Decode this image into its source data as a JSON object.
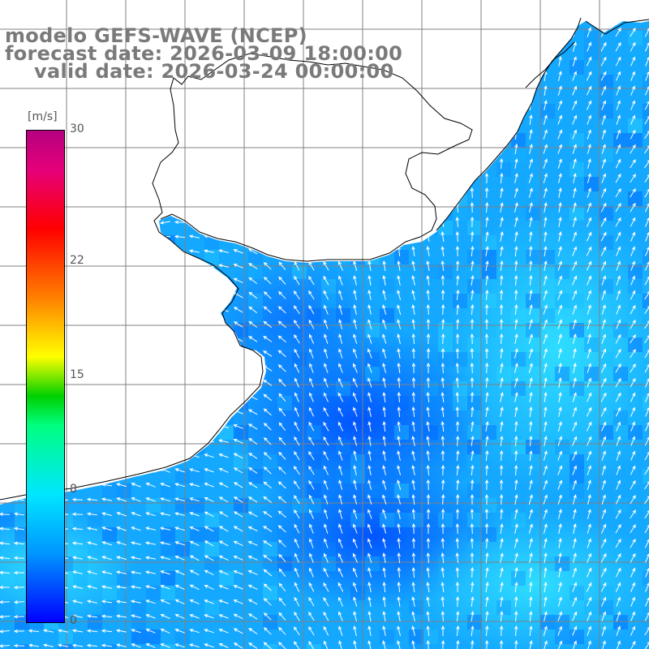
{
  "title": {
    "model": "modelo GEFS-WAVE (NCEP)",
    "forecast": "forecast date: 2026-03-09 18:00:00",
    "valid": "valid date: 2026-03-24 00:00:00"
  },
  "colorbar": {
    "units": "[m/s]",
    "ticks": [
      "30",
      "22",
      "15",
      "8",
      "0"
    ],
    "tick_values": [
      30,
      22,
      15,
      8,
      0
    ],
    "range": [
      0,
      30
    ],
    "colors": {
      "low": "#0000ff",
      "mid_low": "#00e6ff",
      "mid": "#00d000",
      "mid_high": "#ffff00",
      "high": "#ff0000",
      "top": "#b40080"
    }
  },
  "map": {
    "field": "wind speed with direction arrows",
    "land_color": "#ffffff",
    "coastline_color": "#000000",
    "gridline_color": "#808080",
    "ocean_palette": [
      "#0066ff",
      "#0a8cff",
      "#14b4ff",
      "#28d2ff"
    ]
  }
}
